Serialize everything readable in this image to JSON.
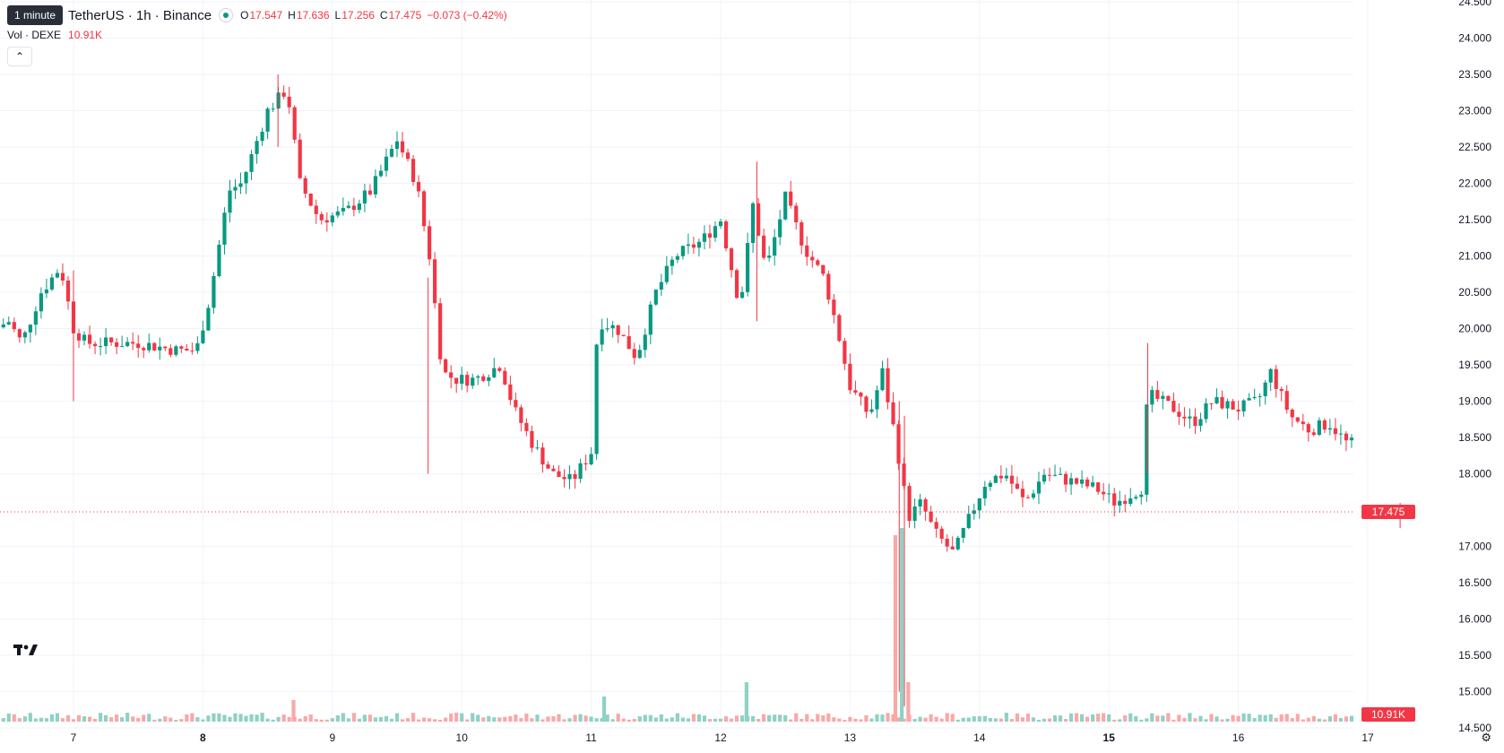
{
  "tooltip": "1 minute",
  "header": {
    "symbol": "TetherUS · 1h · Binance",
    "open_label": "O",
    "open": "17.547",
    "high_label": "H",
    "high": "17.636",
    "low_label": "L",
    "low": "17.256",
    "close_label": "C",
    "close": "17.475",
    "change": "−0.073 (−0.42%)"
  },
  "volume_legend": {
    "label": "Vol · DEXE",
    "value": "10.91K"
  },
  "price_axis": {
    "ticks": [
      "24.500",
      "24.000",
      "23.500",
      "23.000",
      "22.500",
      "22.000",
      "21.500",
      "21.000",
      "20.500",
      "20.000",
      "19.500",
      "19.000",
      "18.500",
      "18.000",
      "17.000",
      "16.500",
      "16.000",
      "15.500",
      "15.000",
      "14.500"
    ]
  },
  "time_axis": {
    "ticks": [
      "7",
      "8",
      "9",
      "10",
      "11",
      "12",
      "13",
      "14",
      "15",
      "16",
      "17"
    ]
  },
  "last_price_label": "17.475",
  "last_volume_label": "10.91K",
  "colors": {
    "up": "#089981",
    "down": "#f23645",
    "up_volume": "#8fd1c4",
    "down_volume": "#f7a9a7",
    "grid": "#f0f3fa"
  },
  "chart_data": {
    "type": "candlestick",
    "interval": "1h",
    "yrange": [
      14.5,
      24.5
    ],
    "x_ticks": [
      "7",
      "8",
      "9",
      "10",
      "11",
      "12",
      "13",
      "14",
      "15",
      "16",
      "17"
    ],
    "price_points": [
      [
        6.0,
        19.5
      ],
      [
        6.3,
        19.9
      ],
      [
        6.5,
        20.1
      ],
      [
        6.6,
        19.8
      ],
      [
        6.75,
        20.5
      ],
      [
        6.9,
        20.85
      ],
      [
        7.0,
        20.0
      ],
      [
        7.1,
        19.8
      ],
      [
        7.5,
        19.8
      ],
      [
        7.8,
        19.7
      ],
      [
        7.95,
        19.7
      ],
      [
        8.05,
        20.4
      ],
      [
        8.2,
        21.9
      ],
      [
        8.3,
        22.0
      ],
      [
        8.5,
        23.0
      ],
      [
        8.65,
        23.3
      ],
      [
        8.75,
        22.0
      ],
      [
        8.9,
        21.5
      ],
      [
        9.1,
        21.6
      ],
      [
        9.3,
        21.9
      ],
      [
        9.5,
        22.6
      ],
      [
        9.65,
        22.0
      ],
      [
        9.75,
        21.0
      ],
      [
        9.85,
        19.4
      ],
      [
        9.95,
        19.3
      ],
      [
        10.1,
        19.3
      ],
      [
        10.3,
        19.5
      ],
      [
        10.4,
        18.9
      ],
      [
        10.55,
        18.4
      ],
      [
        10.7,
        18.0
      ],
      [
        10.85,
        17.9
      ],
      [
        11.0,
        18.3
      ],
      [
        11.05,
        20.1
      ],
      [
        11.2,
        20.0
      ],
      [
        11.35,
        19.6
      ],
      [
        11.5,
        20.5
      ],
      [
        11.65,
        21.0
      ],
      [
        11.85,
        21.2
      ],
      [
        12.0,
        21.5
      ],
      [
        12.15,
        20.3
      ],
      [
        12.25,
        21.7
      ],
      [
        12.35,
        20.8
      ],
      [
        12.5,
        21.8
      ],
      [
        12.65,
        21.1
      ],
      [
        12.8,
        20.7
      ],
      [
        12.9,
        20.0
      ],
      [
        13.0,
        19.2
      ],
      [
        13.15,
        18.8
      ],
      [
        13.25,
        19.4
      ],
      [
        13.35,
        18.5
      ],
      [
        13.45,
        17.4
      ],
      [
        13.55,
        17.6
      ],
      [
        13.65,
        17.2
      ],
      [
        13.8,
        16.9
      ],
      [
        13.95,
        17.5
      ],
      [
        14.05,
        17.9
      ],
      [
        14.2,
        18.0
      ],
      [
        14.35,
        17.6
      ],
      [
        14.5,
        18.0
      ],
      [
        14.7,
        17.9
      ],
      [
        14.9,
        17.8
      ],
      [
        15.05,
        17.6
      ],
      [
        15.25,
        17.8
      ],
      [
        15.3,
        19.1
      ],
      [
        15.5,
        18.9
      ],
      [
        15.65,
        18.7
      ],
      [
        15.8,
        19.0
      ],
      [
        16.0,
        18.9
      ],
      [
        16.15,
        19.0
      ],
      [
        16.25,
        19.4
      ],
      [
        16.4,
        18.8
      ],
      [
        16.55,
        18.6
      ],
      [
        16.7,
        18.7
      ],
      [
        16.85,
        18.4
      ],
      [
        17.0,
        18.5
      ],
      [
        17.1,
        18.2
      ],
      [
        17.2,
        17.5
      ]
    ],
    "notable_candles": [
      {
        "x": 7.0,
        "low": 19.0,
        "high": 20.8
      },
      {
        "x": 8.58,
        "low": 22.5,
        "high": 23.5
      },
      {
        "x": 9.74,
        "low": 18.0,
        "high": 20.7
      },
      {
        "x": 12.28,
        "low": 20.1,
        "high": 22.3
      },
      {
        "x": 13.38,
        "low": 15.0,
        "high": 19.0
      },
      {
        "x": 13.42,
        "low": 14.8,
        "high": 18.8
      },
      {
        "x": 15.3,
        "low": 18.0,
        "high": 19.8
      },
      {
        "x": 17.25,
        "low": 17.25,
        "high": 17.6
      }
    ],
    "volume_spikes": [
      {
        "x": 8.7,
        "dir": "down",
        "value": 0.3
      },
      {
        "x": 11.1,
        "dir": "up",
        "value": 0.35
      },
      {
        "x": 12.2,
        "dir": "up",
        "value": 0.55
      },
      {
        "x": 13.35,
        "dir": "down",
        "value": 2.6
      },
      {
        "x": 13.4,
        "dir": "up",
        "value": 2.7
      },
      {
        "x": 13.45,
        "dir": "down",
        "value": 0.55
      }
    ]
  }
}
